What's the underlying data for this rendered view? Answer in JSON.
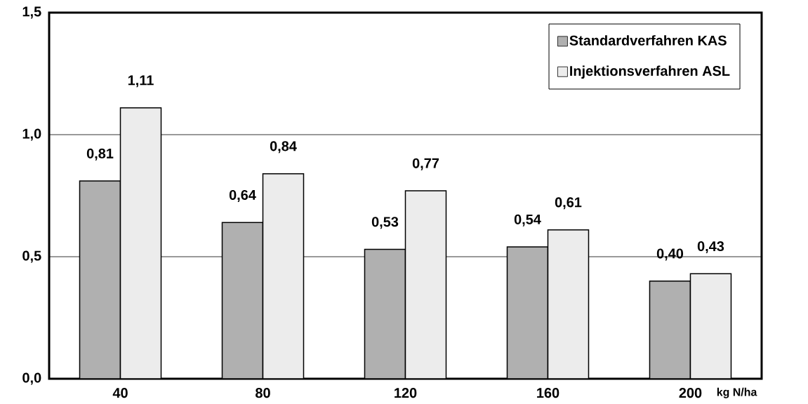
{
  "chart_data": {
    "type": "bar",
    "xlabel": "kg N/ha",
    "categories": [
      "40",
      "80",
      "120",
      "160",
      "200"
    ],
    "series": [
      {
        "name": "Standardverfahren KAS",
        "color": "#b0b0b0",
        "values": [
          0.81,
          0.64,
          0.53,
          0.54,
          0.4
        ],
        "value_labels": [
          "0,81",
          "0,64",
          "0,53",
          "0,54",
          "0,40"
        ]
      },
      {
        "name": "Injektionsverfahren ASL",
        "color": "#ececec",
        "values": [
          1.11,
          0.84,
          0.77,
          0.61,
          0.43
        ],
        "value_labels": [
          "1,11",
          "0,84",
          "0,77",
          "0,61",
          "0,43"
        ]
      }
    ],
    "ylim": [
      0,
      1.5
    ],
    "yticks": [
      {
        "value": 0,
        "label": "0,0"
      },
      {
        "value": 0.5,
        "label": "0,5"
      },
      {
        "value": 1.0,
        "label": "1,0"
      },
      {
        "value": 1.5,
        "label": "1,5"
      }
    ],
    "grid": "y",
    "legend": "top right"
  }
}
